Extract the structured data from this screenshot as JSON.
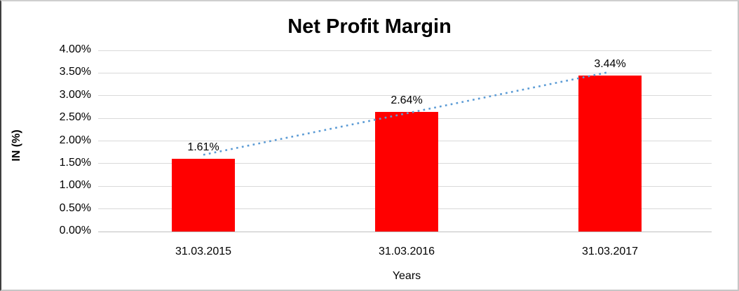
{
  "chart_data": {
    "type": "bar",
    "title": "Net Profit Margin",
    "xlabel": "Years",
    "ylabel": "IN (%)",
    "categories": [
      "31.03.2015",
      "31.03.2016",
      "31.03.2017"
    ],
    "values": [
      1.61,
      2.64,
      3.44
    ],
    "data_labels": [
      "1.61%",
      "2.64%",
      "3.44%"
    ],
    "ylim": [
      0,
      4
    ],
    "ytick_step": 0.5,
    "ytick_labels": [
      "0.00%",
      "0.50%",
      "1.00%",
      "1.50%",
      "2.00%",
      "2.50%",
      "3.00%",
      "3.50%",
      "4.00%"
    ],
    "grid": true,
    "legend": "none",
    "bar_color": "#ff0000",
    "trendline": {
      "type": "linear",
      "series": "Net Profit Margin",
      "style": "dotted",
      "color": "#5b9bd5"
    }
  }
}
